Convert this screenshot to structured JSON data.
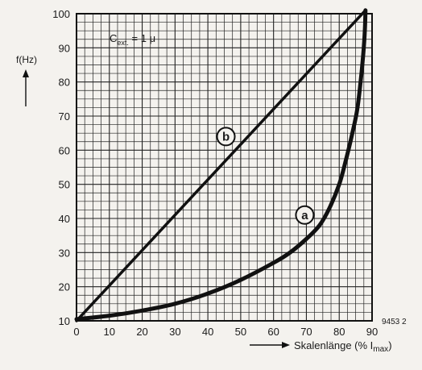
{
  "chart_data": {
    "type": "line",
    "title": "",
    "annotation": "C_ext. = 1 μ",
    "annotation_main": "C",
    "annotation_sub": "ext.",
    "annotation_rest": " = 1 μ",
    "ylabel": "f(Hz)",
    "xlabel": "Skalenlänge (% I",
    "xlabel_sub": "max",
    "xlabel_close": ")",
    "figure_id": "9453 2",
    "xlim": [
      0,
      90
    ],
    "ylim": [
      10,
      100
    ],
    "x_ticks": [
      0,
      10,
      20,
      30,
      40,
      50,
      60,
      70,
      80,
      90
    ],
    "y_ticks": [
      10,
      20,
      30,
      40,
      50,
      60,
      70,
      80,
      90,
      100
    ],
    "grid": true,
    "series": [
      {
        "name": "b",
        "values": [
          [
            0,
            10
          ],
          [
            88,
            101
          ]
        ]
      },
      {
        "name": "a",
        "values": [
          [
            0,
            10.5
          ],
          [
            10,
            11.5
          ],
          [
            20,
            13
          ],
          [
            30,
            15
          ],
          [
            40,
            18
          ],
          [
            50,
            22
          ],
          [
            60,
            27
          ],
          [
            65,
            30
          ],
          [
            70,
            34
          ],
          [
            74,
            38
          ],
          [
            77,
            43
          ],
          [
            80,
            50
          ],
          [
            82,
            57
          ],
          [
            84,
            65
          ],
          [
            85.5,
            72
          ],
          [
            86.5,
            80
          ],
          [
            87.3,
            88
          ],
          [
            87.8,
            95
          ],
          [
            88,
            101
          ]
        ]
      }
    ]
  }
}
